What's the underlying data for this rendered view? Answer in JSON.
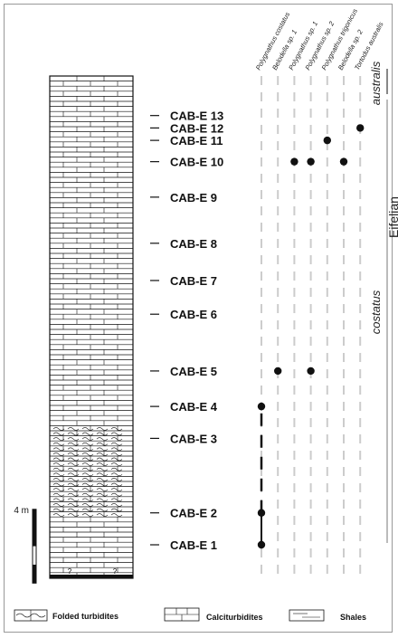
{
  "samples": [
    {
      "label": "CAB-E 13",
      "height_m": 24.2
    },
    {
      "label": "CAB-E 12",
      "height_m": 23.5
    },
    {
      "label": "CAB-E 11",
      "height_m": 22.8
    },
    {
      "label": "CAB-E 10",
      "height_m": 21.6
    },
    {
      "label": "CAB-E 9",
      "height_m": 19.6
    },
    {
      "label": "CAB-E 8",
      "height_m": 17.0
    },
    {
      "label": "CAB-E 7",
      "height_m": 14.9
    },
    {
      "label": "CAB-E 6",
      "height_m": 13.0
    },
    {
      "label": "CAB-E 5",
      "height_m": 9.8
    },
    {
      "label": "CAB-E 4",
      "height_m": 7.8
    },
    {
      "label": "CAB-E 3",
      "height_m": 6.0
    },
    {
      "label": "CAB-E 2",
      "height_m": 1.8
    },
    {
      "label": "CAB-E 1",
      "height_m": 0.0
    }
  ],
  "taxa": [
    "Polygnathus costatus",
    "Belodella sp. 1",
    "Polygnathus sp. 1",
    "Polygnathus sp. 2",
    "Polygnathus trigonicus",
    "Belodella sp. 2",
    "Tortodus australis"
  ],
  "occurrences": [
    {
      "taxon": 0,
      "samples": [
        "CAB-E 1",
        "CAB-E 2",
        "CAB-E 4"
      ]
    },
    {
      "taxon": 1,
      "samples": [
        "CAB-E 5"
      ]
    },
    {
      "taxon": 2,
      "samples": [
        "CAB-E 10"
      ]
    },
    {
      "taxon": 3,
      "samples": [
        "CAB-E 5",
        "CAB-E 10"
      ]
    },
    {
      "taxon": 4,
      "samples": [
        "CAB-E 11"
      ]
    },
    {
      "taxon": 5,
      "samples": [
        "CAB-E 10"
      ]
    },
    {
      "taxon": 6,
      "samples": [
        "CAB-E 12"
      ]
    }
  ],
  "ranges": [
    {
      "taxon": 0,
      "from": "CAB-E 1",
      "to": "CAB-E 4",
      "style": "solid-dashed"
    }
  ],
  "zones": [
    "australis",
    "costatus"
  ],
  "stage": "Eifelian",
  "scale": {
    "label": "4 m",
    "meters": 4
  },
  "lithology_unknown_mark": "?",
  "legend": [
    "Folded turbidites",
    "Calciturbidites",
    "Shales"
  ],
  "colors": {
    "ink": "#111111",
    "range_line": "#cccccc",
    "frame": "#999999"
  }
}
